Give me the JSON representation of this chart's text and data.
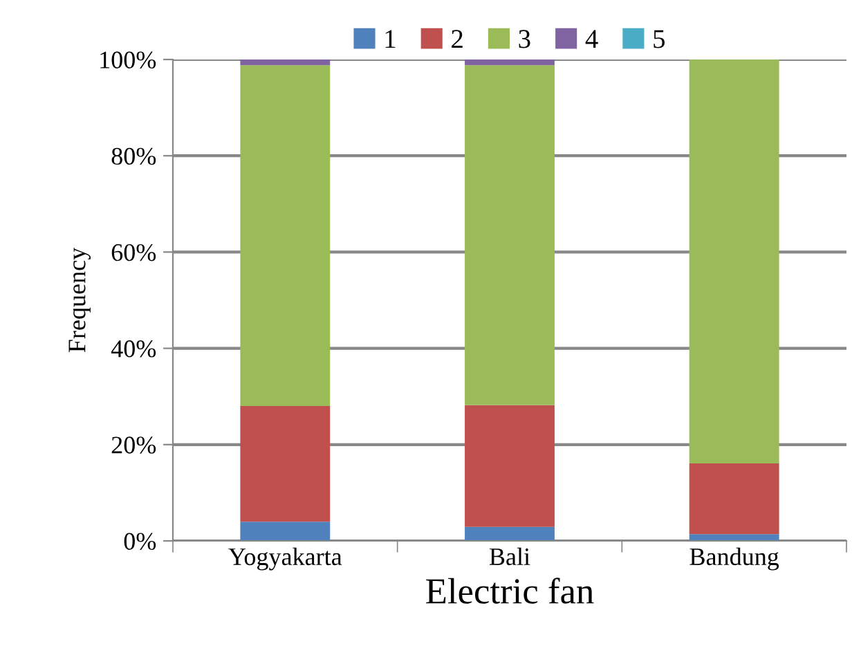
{
  "chart_data": {
    "type": "bar",
    "stacked": true,
    "xlabel": "Electric fan",
    "ylabel": "Frequency",
    "categories": [
      "Yogyakarta",
      "Bali",
      "Bandung"
    ],
    "series": [
      {
        "name": "1",
        "color": "#4f81bd",
        "values": [
          4,
          2.9,
          1.4
        ]
      },
      {
        "name": "2",
        "color": "#c0504d",
        "values": [
          24,
          25.3,
          14.7
        ]
      },
      {
        "name": "3",
        "color": "#9bbb59",
        "values": [
          70.8,
          70.6,
          83.9
        ]
      },
      {
        "name": "4",
        "color": "#8064a2",
        "values": [
          1.2,
          1.2,
          null
        ]
      },
      {
        "name": "5",
        "color": "#4bacc6",
        "values": [
          null,
          null,
          null
        ]
      }
    ],
    "ylim": [
      0,
      100
    ],
    "yticks": [
      {
        "value": 0,
        "label": "0%"
      },
      {
        "value": 20,
        "label": "20%"
      },
      {
        "value": 40,
        "label": "40%"
      },
      {
        "value": 60,
        "label": "60%"
      },
      {
        "value": 80,
        "label": "80%"
      },
      {
        "value": 100,
        "label": "100%"
      }
    ],
    "grid": "y",
    "legend": "top"
  }
}
